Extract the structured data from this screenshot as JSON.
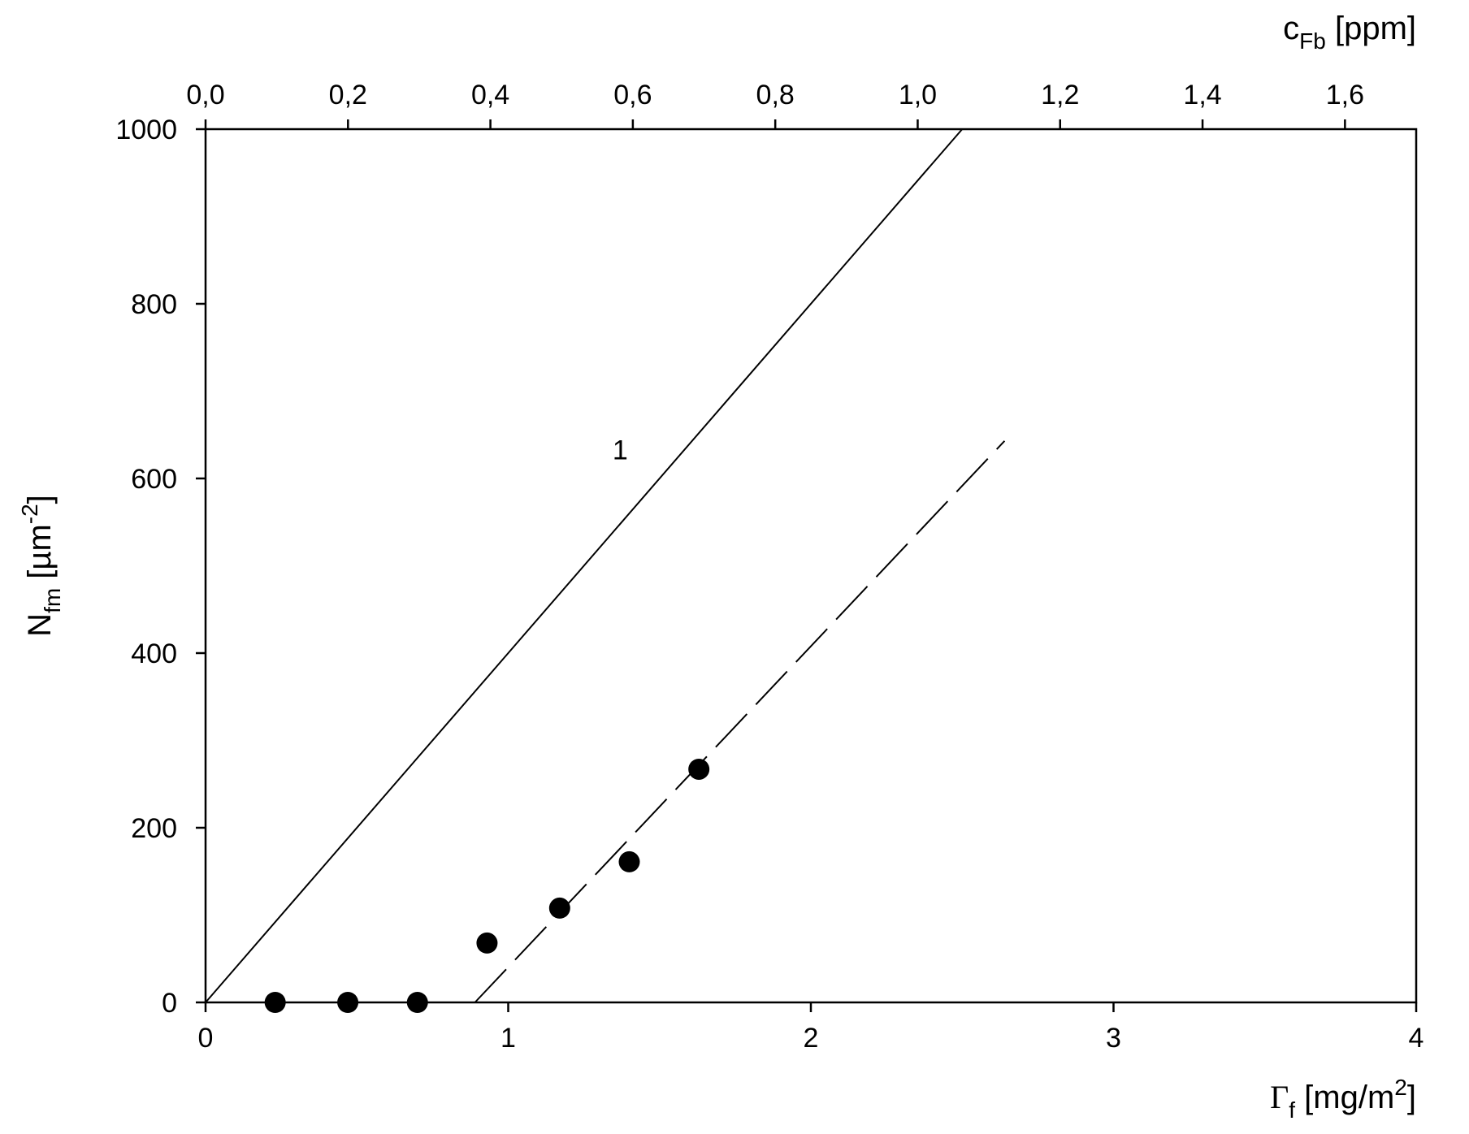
{
  "chart_data": {
    "type": "scatter",
    "title": "",
    "xlabel": {
      "main": "Γ",
      "sub": "f",
      "unit_pre": " [mg/m",
      "sup": "2",
      "unit_post": "]"
    },
    "x2label": {
      "main": "c",
      "sub": "Fb",
      "unit": " [ppm]"
    },
    "ylabel": {
      "main": "N",
      "sub": "fm",
      "unit_pre": " [µm",
      "sup": "-2",
      "unit_post": "]"
    },
    "xlim": [
      0,
      4
    ],
    "x2lim": [
      0,
      1.7
    ],
    "ylim": [
      0,
      1000
    ],
    "xticks": [
      0,
      1,
      2,
      3,
      4
    ],
    "xtick_labels": [
      "0",
      "1",
      "2",
      "3",
      "4"
    ],
    "x2ticks": [
      0,
      0.2,
      0.4,
      0.6,
      0.8,
      1.0,
      1.2,
      1.4,
      1.6
    ],
    "x2tick_labels": [
      "0,0",
      "0,2",
      "0,4",
      "0,6",
      "0,8",
      "1,0",
      "1,2",
      "1,4",
      "1,6"
    ],
    "yticks": [
      0,
      200,
      400,
      600,
      800,
      1000
    ],
    "ytick_labels": [
      "0",
      "200",
      "400",
      "600",
      "800",
      "1000"
    ],
    "grid": false,
    "legend": "none",
    "series": [
      {
        "kind": "points",
        "marker": "filled-circle",
        "color": "#000000",
        "x": [
          0.23,
          0.47,
          0.7,
          0.93,
          1.17,
          1.4,
          1.63
        ],
        "y": [
          0,
          0,
          0,
          68,
          108,
          161,
          267
        ]
      },
      {
        "kind": "line",
        "style": "solid",
        "color": "#000000",
        "x": [
          0,
          2.5
        ],
        "y": [
          0,
          1000
        ]
      },
      {
        "kind": "line",
        "style": "dashed",
        "color": "#000000",
        "x": [
          0.89,
          2.64
        ],
        "y": [
          0,
          643
        ]
      }
    ],
    "annotations": [
      {
        "text": "1",
        "x": 1.37,
        "y": 622
      }
    ]
  }
}
